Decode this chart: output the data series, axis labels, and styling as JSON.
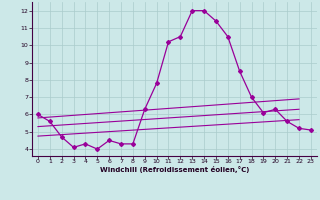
{
  "xlabel": "Windchill (Refroidissement éolien,°C)",
  "background_color": "#cce8e8",
  "grid_color": "#aacccc",
  "line_color": "#990099",
  "x": [
    0,
    1,
    2,
    3,
    4,
    5,
    6,
    7,
    8,
    9,
    10,
    11,
    12,
    13,
    14,
    15,
    16,
    17,
    18,
    19,
    20,
    21,
    22,
    23
  ],
  "line1": [
    6.0,
    5.6,
    4.7,
    4.1,
    4.3,
    4.0,
    4.5,
    4.3,
    4.3,
    6.3,
    7.8,
    10.2,
    10.5,
    12.0,
    12.0,
    11.4,
    10.5,
    8.5,
    7.0,
    6.1,
    6.3,
    5.6,
    5.2,
    5.1
  ],
  "trend1_x": [
    0,
    22
  ],
  "trend1_y": [
    5.8,
    6.9
  ],
  "trend2_x": [
    0,
    22
  ],
  "trend2_y": [
    5.3,
    6.3
  ],
  "trend3_x": [
    0,
    22
  ],
  "trend3_y": [
    4.75,
    5.7
  ],
  "ylim": [
    3.6,
    12.5
  ],
  "xlim": [
    -0.5,
    23.5
  ],
  "yticks": [
    4,
    5,
    6,
    7,
    8,
    9,
    10,
    11,
    12
  ],
  "xticks": [
    0,
    1,
    2,
    3,
    4,
    5,
    6,
    7,
    8,
    9,
    10,
    11,
    12,
    13,
    14,
    15,
    16,
    17,
    18,
    19,
    20,
    21,
    22,
    23
  ]
}
